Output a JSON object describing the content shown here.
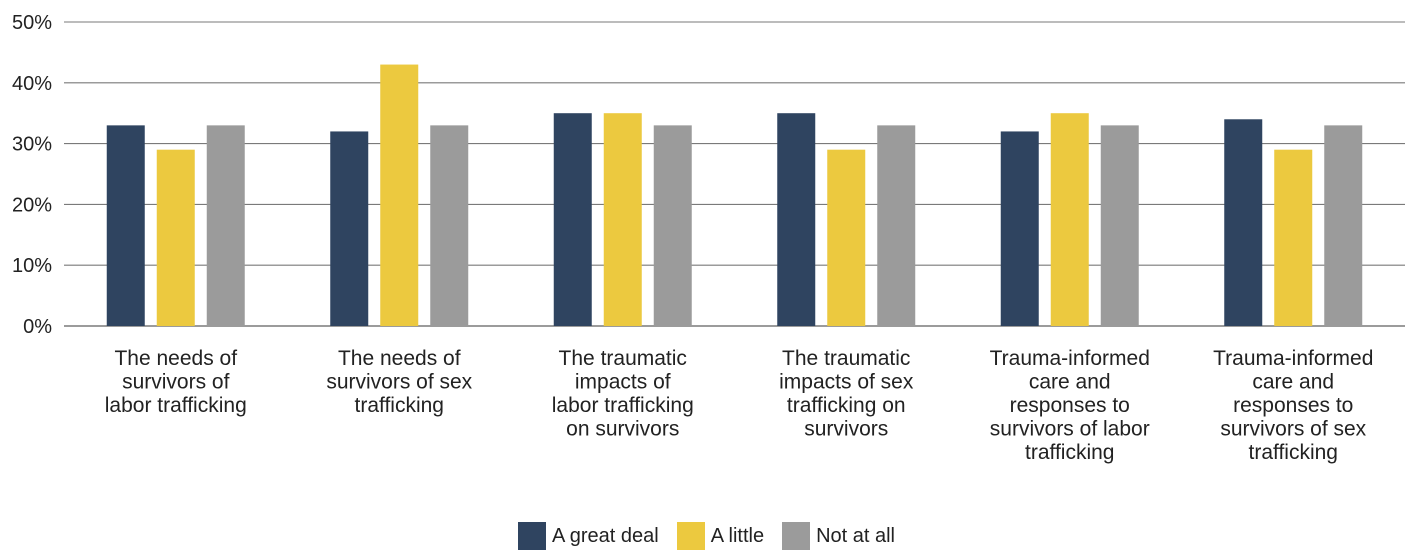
{
  "chart_data": {
    "type": "bar",
    "categories": [
      [
        "The needs of",
        "survivors of",
        "labor trafficking"
      ],
      [
        "The needs of",
        "survivors of sex",
        "trafficking"
      ],
      [
        "The traumatic",
        "impacts of",
        "labor trafficking",
        "on survivors"
      ],
      [
        "The traumatic",
        "impacts of sex",
        "trafficking on",
        "survivors"
      ],
      [
        "Trauma-informed",
        "care and",
        "responses to",
        "survivors of labor",
        "trafficking"
      ],
      [
        "Trauma-informed",
        "care and",
        "responses to",
        "survivors of sex",
        "trafficking"
      ]
    ],
    "series": [
      {
        "name": "A great deal",
        "color": "#2f4460",
        "values": [
          33,
          32,
          35,
          35,
          32,
          34
        ]
      },
      {
        "name": "A little",
        "color": "#ecc93f",
        "values": [
          29,
          43,
          35,
          29,
          35,
          29
        ]
      },
      {
        "name": "Not at all",
        "color": "#9b9b9b",
        "values": [
          33,
          33,
          33,
          33,
          33,
          33
        ]
      }
    ],
    "ylim": [
      0,
      50
    ],
    "yticks": [
      "0%",
      "10%",
      "20%",
      "30%",
      "40%",
      "50%"
    ],
    "grid": true,
    "legend_position": "bottom"
  }
}
